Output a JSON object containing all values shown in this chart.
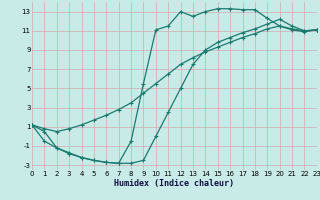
{
  "xlabel": "Humidex (Indice chaleur)",
  "background_color": "#c8ebe8",
  "grid_color": "#d4a8b0",
  "line_color": "#1a7a6e",
  "xlim": [
    0,
    23
  ],
  "ylim": [
    -3.5,
    14.0
  ],
  "xticks": [
    0,
    1,
    2,
    3,
    4,
    5,
    6,
    7,
    8,
    9,
    10,
    11,
    12,
    13,
    14,
    15,
    16,
    17,
    18,
    19,
    20,
    21,
    22,
    23
  ],
  "yticks": [
    -3,
    -1,
    1,
    3,
    5,
    7,
    9,
    11,
    13
  ],
  "curve1_x": [
    0,
    1,
    2,
    3,
    4,
    5,
    6,
    7,
    8,
    9,
    10,
    11,
    12,
    13,
    14,
    15,
    16,
    17,
    18,
    19,
    20,
    21,
    22,
    23
  ],
  "curve1_y": [
    1.2,
    -0.5,
    -1.2,
    -1.7,
    -2.2,
    -2.5,
    -2.7,
    -2.8,
    -0.5,
    5.5,
    11.1,
    11.5,
    13.0,
    12.5,
    13.0,
    13.3,
    13.3,
    13.2,
    13.2,
    12.3,
    11.5,
    11.1,
    10.9,
    11.1
  ],
  "curve2_x": [
    0,
    1,
    2,
    3,
    4,
    5,
    6,
    7,
    8,
    9,
    10,
    11,
    12,
    13,
    14,
    15,
    16,
    17,
    18,
    19,
    20,
    21,
    22,
    23
  ],
  "curve2_y": [
    1.2,
    0.8,
    0.5,
    0.8,
    1.2,
    1.7,
    2.2,
    2.8,
    3.5,
    4.5,
    5.5,
    6.5,
    7.5,
    8.2,
    8.8,
    9.3,
    9.8,
    10.3,
    10.7,
    11.2,
    11.5,
    11.2,
    11.0,
    11.1
  ],
  "curve3_x": [
    0,
    1,
    2,
    3,
    4,
    5,
    6,
    7,
    8,
    9,
    10,
    11,
    12,
    13,
    14,
    15,
    16,
    17,
    18,
    19,
    20,
    21,
    22,
    23
  ],
  "curve3_y": [
    1.2,
    0.5,
    -1.2,
    -1.8,
    -2.2,
    -2.5,
    -2.7,
    -2.8,
    -2.8,
    -2.5,
    0.0,
    2.5,
    5.0,
    7.5,
    9.0,
    9.8,
    10.3,
    10.8,
    11.2,
    11.7,
    12.2,
    11.5,
    11.0,
    11.1
  ]
}
